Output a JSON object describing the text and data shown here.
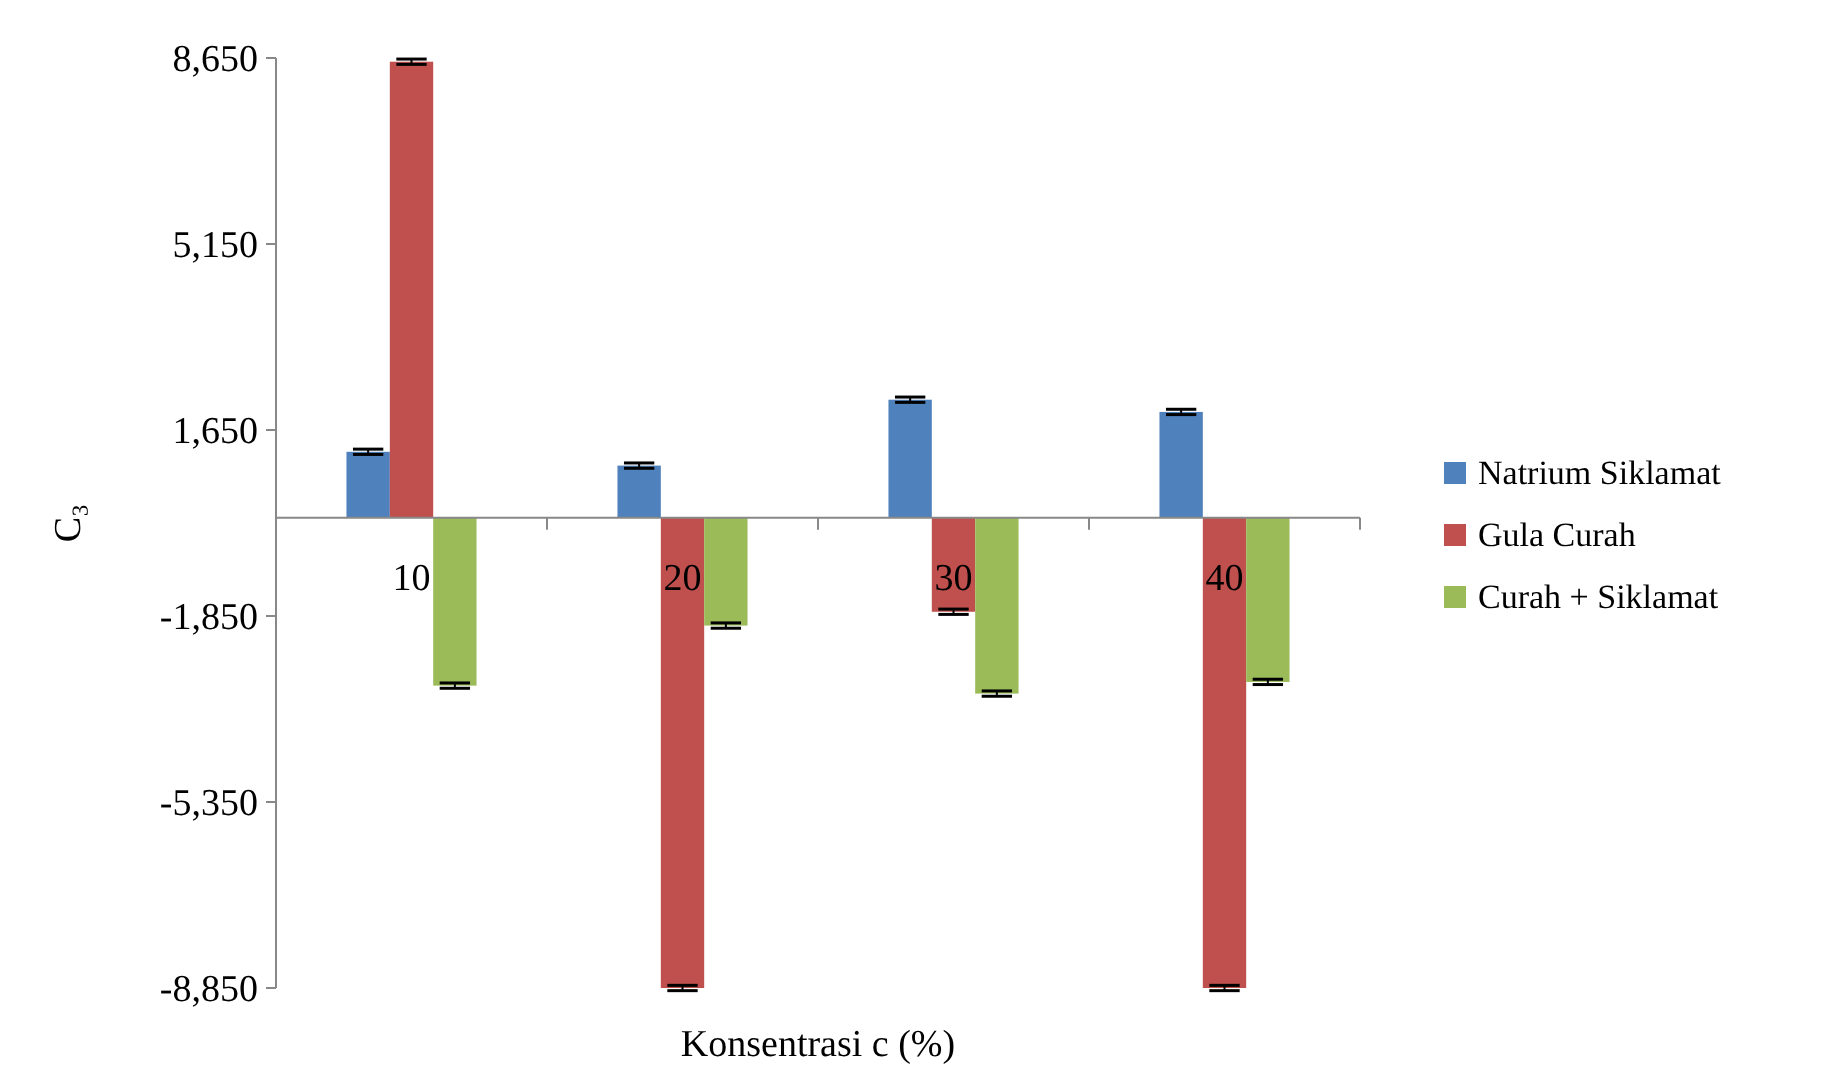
{
  "chart_data": {
    "type": "bar",
    "xlabel": "Konsentrasi c (%)",
    "ylabel": "C₃",
    "categories": [
      "10",
      "20",
      "30",
      "40"
    ],
    "series": [
      {
        "name": "Natrium Siklamat",
        "color": "#4f81bd",
        "values": [
          1240,
          980,
          2220,
          1990
        ],
        "errors": [
          50,
          50,
          50,
          50
        ]
      },
      {
        "name": "Gula Curah",
        "color": "#c0504d",
        "values": [
          8580,
          -8850,
          -1770,
          -8850
        ],
        "errors": [
          50,
          50,
          50,
          50
        ]
      },
      {
        "name": "Curah + Siklamat",
        "color": "#9bbb59",
        "values": [
          -3160,
          -2030,
          -3310,
          -3090
        ],
        "errors": [
          50,
          50,
          50,
          50
        ]
      }
    ],
    "ylim": [
      -8850,
      8650
    ],
    "yticks": [
      {
        "value": 8650,
        "label": "8,650"
      },
      {
        "value": 5150,
        "label": "5,150"
      },
      {
        "value": 1650,
        "label": "1,650"
      },
      {
        "value": -1850,
        "label": "-1,850"
      },
      {
        "value": -5350,
        "label": "-5,350"
      },
      {
        "value": -8850,
        "label": "-8,850"
      }
    ],
    "grid": false,
    "legend": "right"
  }
}
